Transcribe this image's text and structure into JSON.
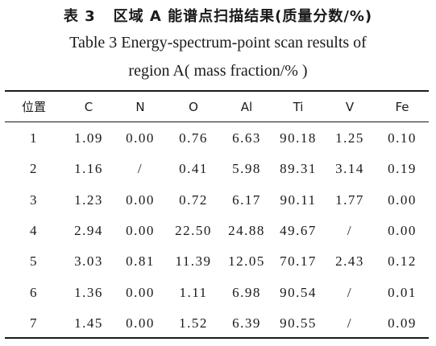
{
  "caption": {
    "cn_label": "表 3",
    "cn_title": "区域 A 能谱点扫描结果(质量分数/%)",
    "en_line1": "Table 3 Energy-spectrum-point scan results of",
    "en_line2": "region A( mass fraction/% )"
  },
  "table": {
    "columns": [
      "位置",
      "C",
      "N",
      "O",
      "Al",
      "Ti",
      "V",
      "Fe"
    ],
    "rows": [
      [
        "1",
        "1.09",
        "0.00",
        "0.76",
        "6.63",
        "90.18",
        "1.25",
        "0.10"
      ],
      [
        "2",
        "1.16",
        "/",
        "0.41",
        "5.98",
        "89.31",
        "3.14",
        "0.19"
      ],
      [
        "3",
        "1.23",
        "0.00",
        "0.72",
        "6.17",
        "90.11",
        "1.77",
        "0.00"
      ],
      [
        "4",
        "2.94",
        "0.00",
        "22.50",
        "24.88",
        "49.67",
        "/",
        "0.00"
      ],
      [
        "5",
        "3.03",
        "0.81",
        "11.39",
        "12.05",
        "70.17",
        "2.43",
        "0.12"
      ],
      [
        "6",
        "1.36",
        "0.00",
        "1.11",
        "6.98",
        "90.54",
        "/",
        "0.01"
      ],
      [
        "7",
        "1.45",
        "0.00",
        "1.52",
        "6.39",
        "90.55",
        "/",
        "0.09"
      ]
    ]
  }
}
